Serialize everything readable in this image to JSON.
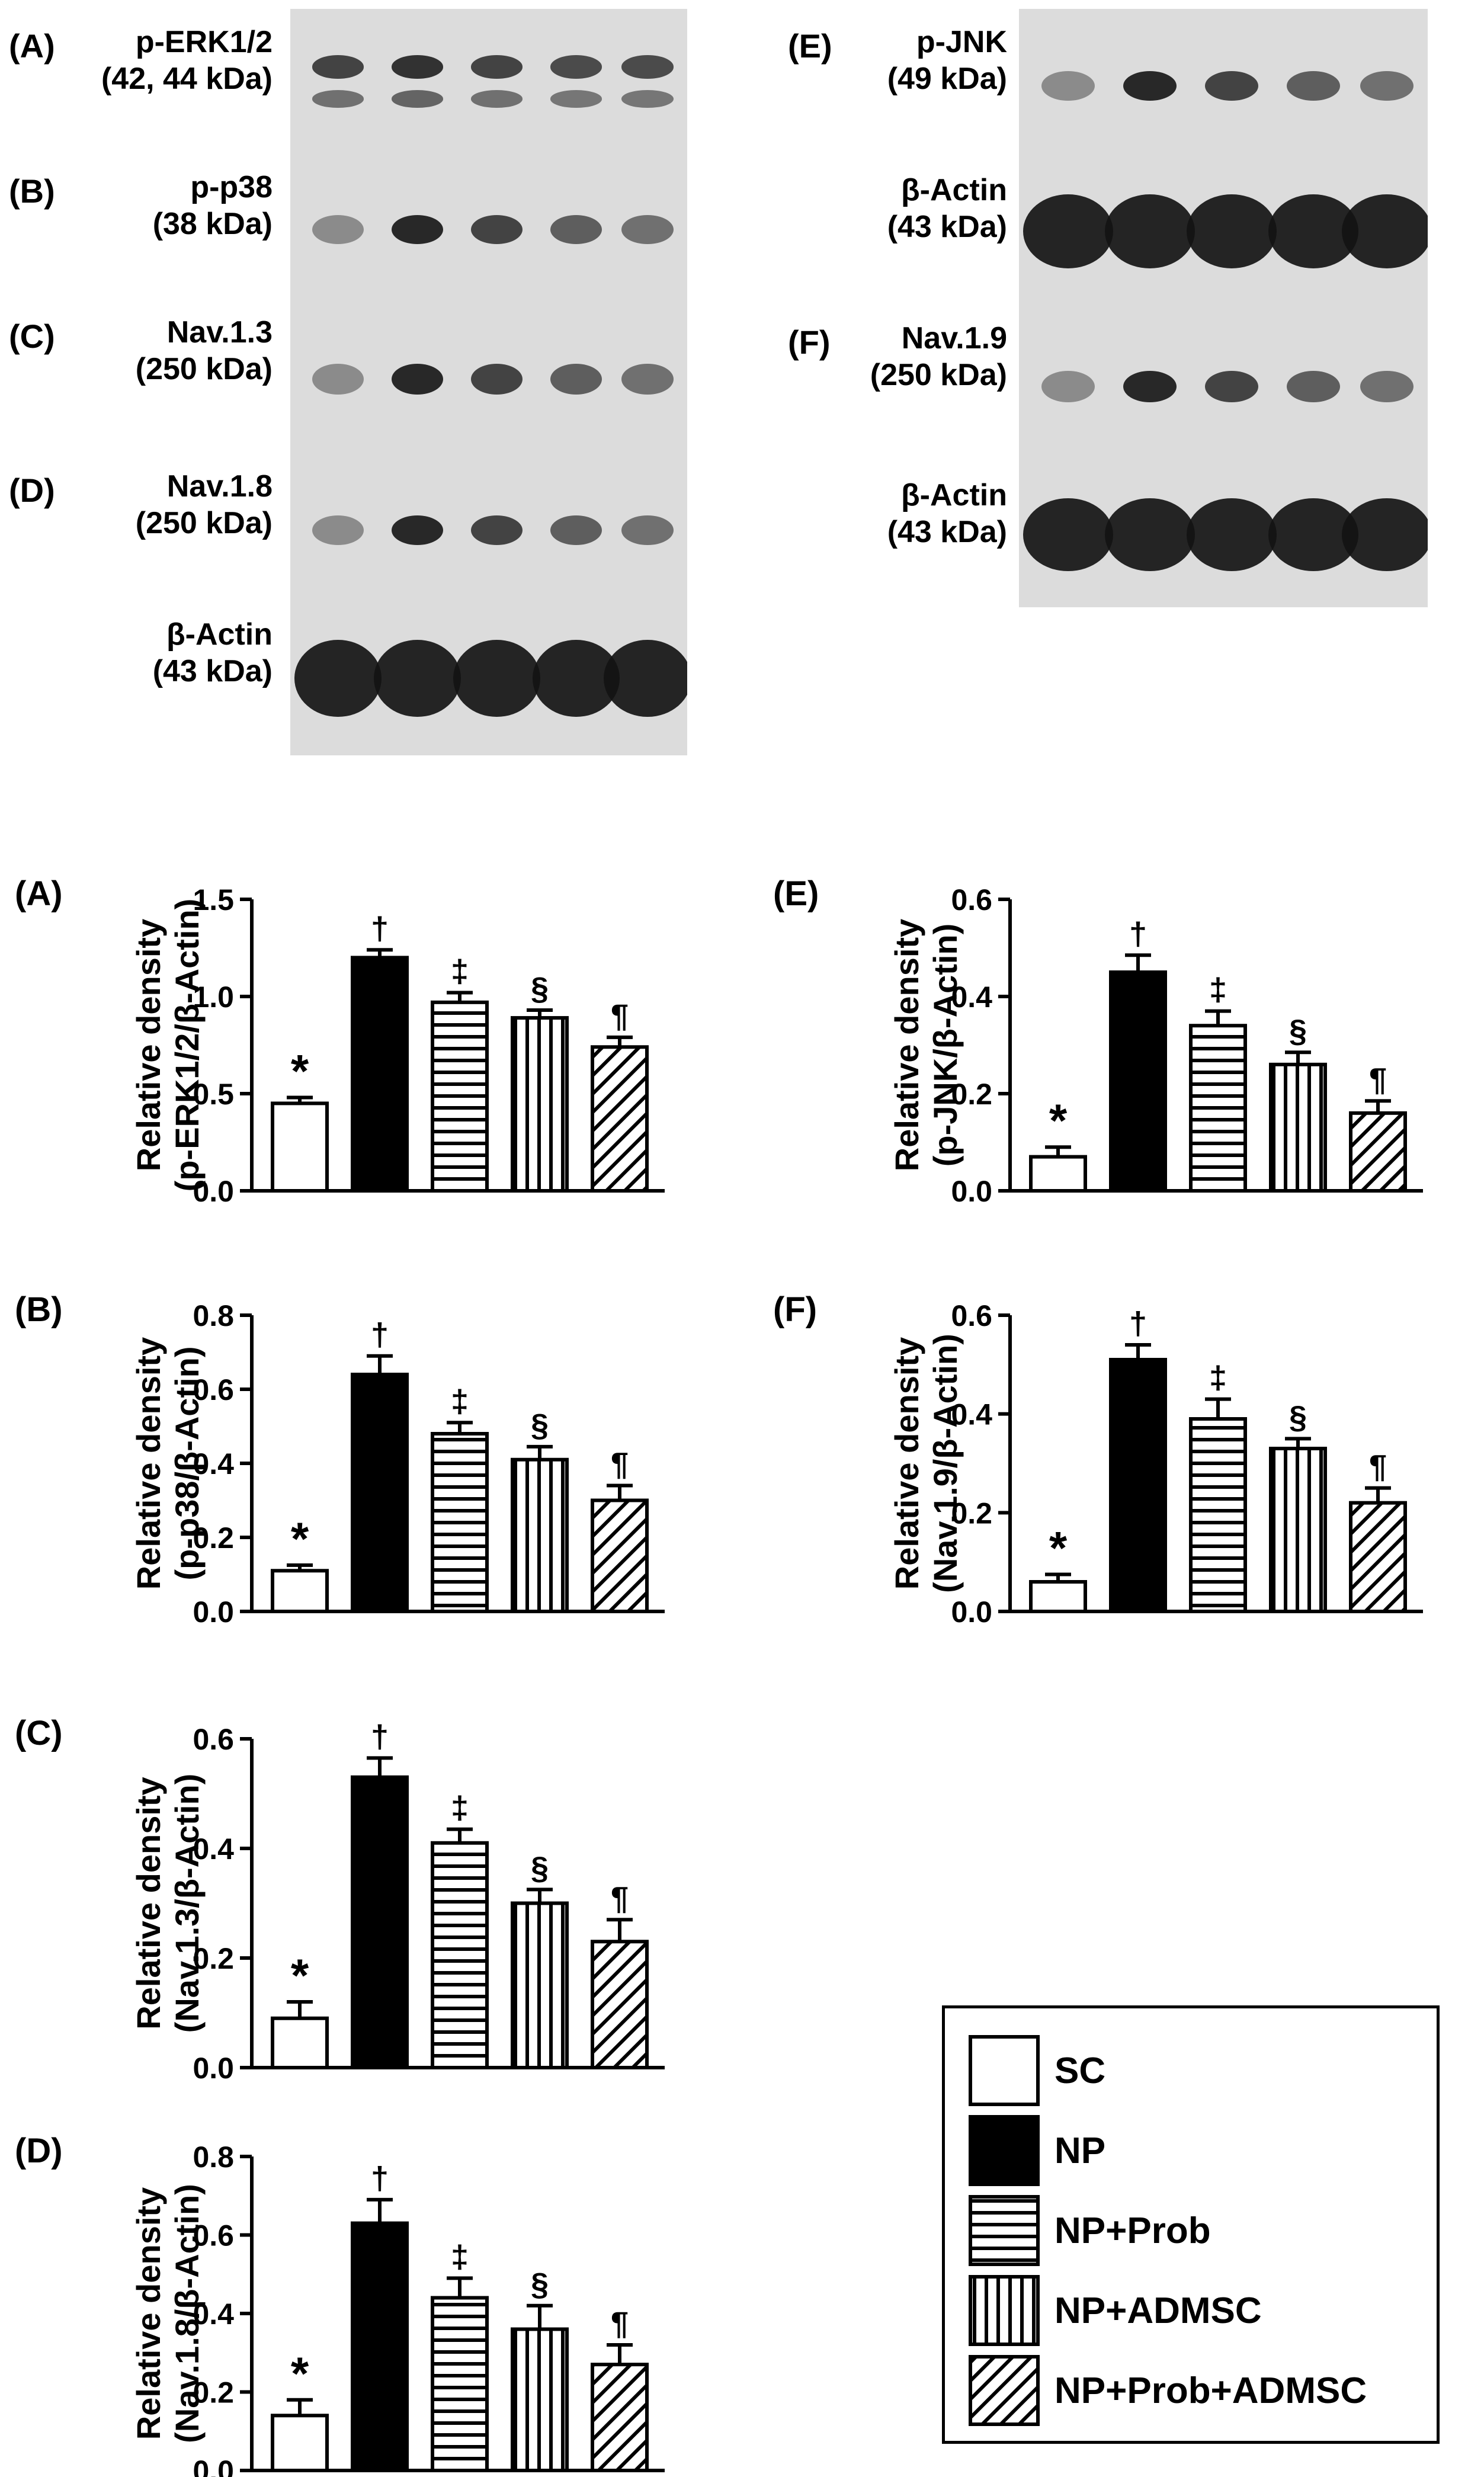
{
  "blots": {
    "left": [
      {
        "letter": "(A)",
        "name": "p-ERK1/2",
        "size": "(42, 44 kDa)",
        "pattern": "double"
      },
      {
        "letter": "(B)",
        "name": "p-p38",
        "size": "(38 kDa)",
        "pattern": "single"
      },
      {
        "letter": "(C)",
        "name": "Nav.1.3",
        "size": "(250 kDa)",
        "pattern": "single"
      },
      {
        "letter": "(D)",
        "name": "Nav.1.8",
        "size": "(250 kDa)",
        "pattern": "single"
      },
      {
        "letter": "",
        "name": "β-Actin",
        "size": "(43 kDa)",
        "pattern": "actin"
      }
    ],
    "right": [
      {
        "letter": "(E)",
        "name": "p-JNK",
        "size": "(49 kDa)",
        "pattern": "single"
      },
      {
        "letter": "",
        "name": "β-Actin",
        "size": "(43 kDa)",
        "pattern": "actin"
      },
      {
        "letter": "(F)",
        "name": "Nav.1.9",
        "size": "(250 kDa)",
        "pattern": "single"
      },
      {
        "letter": "",
        "name": "β-Actin",
        "size": "(43 kDa)",
        "pattern": "actin"
      }
    ]
  },
  "colors": {
    "bar_edge": "#000000",
    "np_fill": "#000000",
    "sc_fill": "#ffffff"
  },
  "legend": [
    {
      "label": "SC",
      "pattern": "white"
    },
    {
      "label": "NP",
      "pattern": "black"
    },
    {
      "label": "NP+Prob",
      "pattern": "hlines"
    },
    {
      "label": "NP+ADMSC",
      "pattern": "vlines"
    },
    {
      "label": "NP+Prob+ADMSC",
      "pattern": "diag"
    }
  ],
  "chart_data": [
    {
      "type": "bar",
      "panel": "(A)",
      "ylabel_line1": "Relative density",
      "ylabel_line2": "(p-ERK1/2/β-Actin)",
      "ylim": [
        0,
        1.5
      ],
      "yticks": [
        "0.0",
        "0.5",
        "1.0",
        "1.5"
      ],
      "categories": [
        "SC",
        "NP",
        "NP+Prob",
        "NP+ADMSC",
        "NP+Prob+ADMSC"
      ],
      "values": [
        0.45,
        1.2,
        0.97,
        0.89,
        0.74
      ],
      "errors": [
        0.03,
        0.04,
        0.05,
        0.04,
        0.05
      ],
      "markers": [
        "*",
        "†",
        "‡",
        "§",
        "¶"
      ]
    },
    {
      "type": "bar",
      "panel": "(B)",
      "ylabel_line1": "Relative density",
      "ylabel_line2": "(p-p38/β-Actin)",
      "ylim": [
        0,
        0.8
      ],
      "yticks": [
        "0.0",
        "0.2",
        "0.4",
        "0.6",
        "0.8"
      ],
      "categories": [
        "SC",
        "NP",
        "NP+Prob",
        "NP+ADMSC",
        "NP+Prob+ADMSC"
      ],
      "values": [
        0.11,
        0.64,
        0.48,
        0.41,
        0.3
      ],
      "errors": [
        0.015,
        0.05,
        0.03,
        0.035,
        0.04
      ],
      "markers": [
        "*",
        "†",
        "‡",
        "§",
        "¶"
      ]
    },
    {
      "type": "bar",
      "panel": "(C)",
      "ylabel_line1": "Relative density",
      "ylabel_line2": "(Nav.1.3/β-Actin)",
      "ylim": [
        0,
        0.6
      ],
      "yticks": [
        "0.0",
        "0.2",
        "0.4",
        "0.6"
      ],
      "categories": [
        "SC",
        "NP",
        "NP+Prob",
        "NP+ADMSC",
        "NP+Prob+ADMSC"
      ],
      "values": [
        0.09,
        0.53,
        0.41,
        0.3,
        0.23
      ],
      "errors": [
        0.03,
        0.035,
        0.025,
        0.025,
        0.04
      ],
      "markers": [
        "*",
        "†",
        "‡",
        "§",
        "¶"
      ]
    },
    {
      "type": "bar",
      "panel": "(D)",
      "ylabel_line1": "Relative density",
      "ylabel_line2": "(Nav.1.8/β-Actin)",
      "ylim": [
        0,
        0.8
      ],
      "yticks": [
        "0.0",
        "0.2",
        "0.4",
        "0.6",
        "0.8"
      ],
      "categories": [
        "SC",
        "NP",
        "NP+Prob",
        "NP+ADMSC",
        "NP+Prob+ADMSC"
      ],
      "values": [
        0.14,
        0.63,
        0.44,
        0.36,
        0.27
      ],
      "errors": [
        0.04,
        0.06,
        0.05,
        0.06,
        0.05
      ],
      "markers": [
        "*",
        "†",
        "‡",
        "§",
        "¶"
      ]
    },
    {
      "type": "bar",
      "panel": "(E)",
      "ylabel_line1": "Relative density",
      "ylabel_line2": "(p-JNK/β-Actin)",
      "ylim": [
        0,
        0.6
      ],
      "yticks": [
        "0.0",
        "0.2",
        "0.4",
        "0.6"
      ],
      "categories": [
        "SC",
        "NP",
        "NP+Prob",
        "NP+ADMSC",
        "NP+Prob+ADMSC"
      ],
      "values": [
        0.07,
        0.45,
        0.34,
        0.26,
        0.16
      ],
      "errors": [
        0.02,
        0.035,
        0.03,
        0.025,
        0.025
      ],
      "markers": [
        "*",
        "†",
        "‡",
        "§",
        "¶"
      ]
    },
    {
      "type": "bar",
      "panel": "(F)",
      "ylabel_line1": "Relative density",
      "ylabel_line2": "(Nav.1.9/β-Actin)",
      "ylim": [
        0,
        0.6
      ],
      "yticks": [
        "0.0",
        "0.2",
        "0.4",
        "0.6"
      ],
      "categories": [
        "SC",
        "NP",
        "NP+Prob",
        "NP+ADMSC",
        "NP+Prob+ADMSC"
      ],
      "values": [
        0.06,
        0.51,
        0.39,
        0.33,
        0.22
      ],
      "errors": [
        0.015,
        0.03,
        0.04,
        0.02,
        0.03
      ],
      "markers": [
        "*",
        "†",
        "‡",
        "§",
        "¶"
      ]
    }
  ]
}
